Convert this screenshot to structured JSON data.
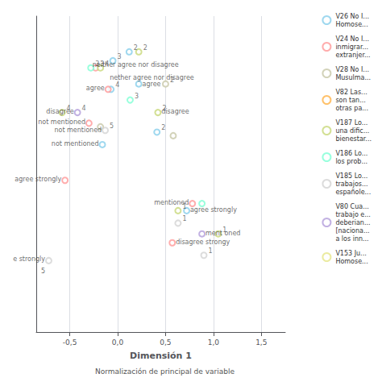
{
  "chart_data": {
    "type": "scatter",
    "xlabel": "Dimensión 1",
    "subtitle": "Normalización de principal de variable",
    "xlim": [
      -0.85,
      1.75
    ],
    "ylim": [
      -1.05,
      0.72
    ],
    "xticks": [
      {
        "value": -0.5,
        "label": "-0,5"
      },
      {
        "value": 0.0,
        "label": "0,0"
      },
      {
        "value": 0.5,
        "label": "0,5"
      },
      {
        "value": 1.0,
        "label": "1,0"
      },
      {
        "value": 1.5,
        "label": "1,5"
      }
    ],
    "tick_labels": "x",
    "grid": true,
    "legend": "right",
    "marker": "empty_circle",
    "series": [
      {
        "name": "V26 No I...\nHomose...",
        "color": "#87CEEB",
        "x": [
          0.12,
          -0.05,
          -0.07,
          0.22,
          0.41,
          -0.16,
          0.72
        ],
        "y": [
          0.52,
          0.47,
          0.31,
          0.34,
          0.07,
          0.0,
          -0.37
        ],
        "labels": [
          "2",
          "3",
          "4",
          null,
          "2",
          null,
          null
        ]
      },
      {
        "name": "V24 No I...\ninmigrar...\nextranjer...",
        "color": "#FF9999",
        "x": [
          -0.23,
          -0.1,
          -0.3,
          -0.55,
          0.78,
          0.57
        ],
        "y": [
          0.43,
          0.31,
          0.12,
          -0.2,
          -0.33,
          -0.55
        ],
        "labels": [
          "3",
          null,
          null,
          null,
          null,
          null
        ]
      },
      {
        "name": "V28 No I...\nMusulma...",
        "color": "#C8C8A9",
        "x": [
          0.5,
          0.58,
          -0.18
        ],
        "y": [
          0.34,
          0.05,
          0.1
        ],
        "labels": [
          "2",
          null,
          null
        ]
      },
      {
        "name": "V82 Las...\nson tan...\notras pa...",
        "color": "#FFB347",
        "x": [],
        "y": [],
        "labels": []
      },
      {
        "name": "V187 Lo...\nuna dific...\nbienestar...",
        "color": "#c8d87a",
        "x": [
          0.22,
          -0.18,
          -0.58,
          0.42,
          0.63,
          1.05
        ],
        "y": [
          0.52,
          0.43,
          0.18,
          0.18,
          -0.37,
          -0.5
        ],
        "labels": [
          "2",
          "4",
          "4",
          "2",
          "1",
          "1"
        ]
      },
      {
        "name": "V186 Lo...\nlos prob...",
        "color": "#7FFFD4",
        "x": [
          -0.28,
          0.13,
          0.88
        ],
        "y": [
          0.43,
          0.25,
          -0.33
        ],
        "labels": [
          "3",
          "3",
          null
        ]
      },
      {
        "name": "V185 Lo...\ntrabajos...\nespañole...",
        "color": "#D3D3D3",
        "x": [
          -0.13,
          0.63,
          0.9,
          -0.72
        ],
        "y": [
          0.08,
          -0.44,
          -0.62,
          -0.65
        ],
        "labels": [
          "5",
          "1",
          "1",
          null
        ]
      },
      {
        "name": "V80 Cua...\ntrabajo e...\ndeberian...\n[naciona...\na los inn...",
        "color": "#B39DDB",
        "x": [
          -0.42,
          0.88
        ],
        "y": [
          0.18,
          -0.5
        ],
        "labels": [
          "4",
          null
        ]
      },
      {
        "name": "V153 Ju...\nHomose...",
        "color": "#E6E68A",
        "x": [],
        "y": [],
        "labels": []
      }
    ],
    "annotations": [
      {
        "x": -0.28,
        "y": 0.445,
        "text": "neither agree nor disagree",
        "align": "left"
      },
      {
        "x": -0.1,
        "y": 0.375,
        "text": "nether agree nor disagree",
        "align": "left"
      },
      {
        "x": -0.12,
        "y": 0.315,
        "text": "agree",
        "align": "right"
      },
      {
        "x": 0.24,
        "y": 0.34,
        "text": "agree",
        "align": "left"
      },
      {
        "x": -0.44,
        "y": 0.185,
        "text": "disagree",
        "align": "right"
      },
      {
        "x": -0.32,
        "y": 0.125,
        "text": "not mentioned",
        "align": "right"
      },
      {
        "x": -0.15,
        "y": 0.08,
        "text": "not mentioned",
        "align": "right"
      },
      {
        "x": -0.18,
        "y": 0.005,
        "text": "not mentioned",
        "align": "right"
      },
      {
        "x": 0.44,
        "y": 0.185,
        "text": "disagree",
        "align": "left"
      },
      {
        "x": -0.57,
        "y": -0.195,
        "text": "agree strongly",
        "align": "right"
      },
      {
        "x": 0.76,
        "y": -0.325,
        "text": "mentioned",
        "align": "right"
      },
      {
        "x": 0.74,
        "y": -0.365,
        "text": "agree strongly",
        "align": "left"
      },
      {
        "x": 0.9,
        "y": -0.495,
        "text": "ment oned",
        "align": "left"
      },
      {
        "x": 0.59,
        "y": -0.545,
        "text": "disagree strongy",
        "align": "left"
      },
      {
        "x": -0.74,
        "y": -0.64,
        "text": "e strongly",
        "align": "right"
      },
      {
        "x": -0.74,
        "y": -0.71,
        "text": "5",
        "align": "right"
      }
    ]
  }
}
